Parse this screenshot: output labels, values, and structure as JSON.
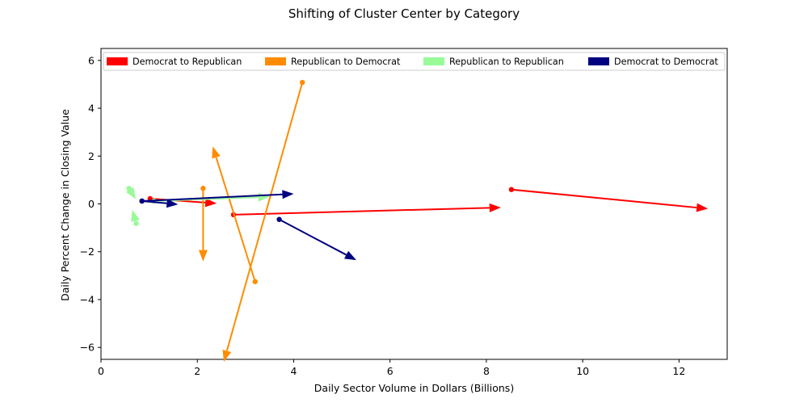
{
  "chart_data": {
    "type": "vector-field",
    "title": "Shifting of Cluster Center by Category",
    "xlabel": "Daily Sector Volume in Dollars (Billions)",
    "ylabel": "Daily Percent Change in Closing Value",
    "xlim": [
      0,
      13
    ],
    "ylim": [
      -6.5,
      6.5
    ],
    "xticks": [
      0,
      2,
      4,
      6,
      8,
      10,
      12
    ],
    "yticks": [
      -6,
      -4,
      -2,
      0,
      2,
      4,
      6
    ],
    "legend_position": "top",
    "series": [
      {
        "name": "Democrat to Republican",
        "color": "#ff0000",
        "vectors": [
          {
            "x0": 2.75,
            "y0": -0.45,
            "x1": 8.3,
            "y1": -0.15
          },
          {
            "x0": 8.52,
            "y0": 0.6,
            "x1": 12.6,
            "y1": -0.2
          },
          {
            "x0": 1.02,
            "y0": 0.22,
            "x1": 2.4,
            "y1": 0.02
          }
        ]
      },
      {
        "name": "Republican to Democrat",
        "color": "#ff8c00",
        "vectors": [
          {
            "x0": 4.18,
            "y0": 5.08,
            "x1": 2.55,
            "y1": -6.6
          },
          {
            "x0": 3.2,
            "y0": -3.25,
            "x1": 2.32,
            "y1": 2.4
          },
          {
            "x0": 2.12,
            "y0": 0.65,
            "x1": 2.12,
            "y1": -2.4
          }
        ]
      },
      {
        "name": "Republican to Republican",
        "color": "#98fb98",
        "vectors": [
          {
            "x0": 0.58,
            "y0": 0.65,
            "x1": 0.72,
            "y1": 0.2
          },
          {
            "x0": 0.73,
            "y0": -0.82,
            "x1": 0.65,
            "y1": -0.25
          },
          {
            "x0": 1.1,
            "y0": 0.12,
            "x1": 3.5,
            "y1": 0.3
          }
        ]
      },
      {
        "name": "Democrat to Democrat",
        "color": "#000080",
        "vectors": [
          {
            "x0": 0.85,
            "y0": 0.12,
            "x1": 4.0,
            "y1": 0.42
          },
          {
            "x0": 0.85,
            "y0": 0.12,
            "x1": 1.6,
            "y1": -0.02
          },
          {
            "x0": 3.7,
            "y0": -0.65,
            "x1": 5.3,
            "y1": -2.35
          }
        ]
      }
    ]
  }
}
